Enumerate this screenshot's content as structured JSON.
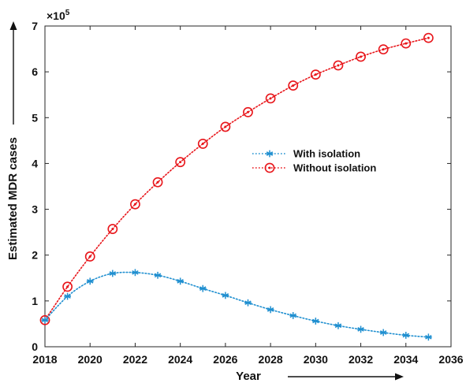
{
  "chart_data": {
    "type": "line",
    "xlabel": "Year",
    "ylabel": "Estimated MDR cases",
    "y_multiplier": {
      "base": "×10",
      "exponent": "5"
    },
    "xlim": [
      2018,
      2036
    ],
    "ylim": [
      0,
      7
    ],
    "x_ticks": [
      2018,
      2020,
      2022,
      2024,
      2026,
      2028,
      2030,
      2032,
      2034,
      2036
    ],
    "y_ticks": [
      0,
      1,
      2,
      3,
      4,
      5,
      6,
      7
    ],
    "grid": false,
    "legend_position": "center-right",
    "x": [
      2018,
      2019,
      2020,
      2021,
      2022,
      2023,
      2024,
      2025,
      2026,
      2027,
      2028,
      2029,
      2030,
      2031,
      2032,
      2033,
      2034,
      2035
    ],
    "series": [
      {
        "name": "With isolation",
        "color": "#1f8fd0",
        "marker": "asterisk",
        "line_style": "dotted",
        "values": [
          0.58,
          1.1,
          1.43,
          1.6,
          1.62,
          1.56,
          1.43,
          1.27,
          1.12,
          0.96,
          0.81,
          0.68,
          0.56,
          0.46,
          0.38,
          0.31,
          0.25,
          0.21
        ]
      },
      {
        "name": "Without isolation",
        "color": "#e8161b",
        "marker": "circle",
        "line_style": "dotted",
        "values": [
          0.58,
          1.31,
          1.97,
          2.57,
          3.11,
          3.59,
          4.03,
          4.43,
          4.8,
          5.12,
          5.42,
          5.7,
          5.94,
          6.14,
          6.33,
          6.49,
          6.62,
          6.74
        ]
      }
    ]
  }
}
